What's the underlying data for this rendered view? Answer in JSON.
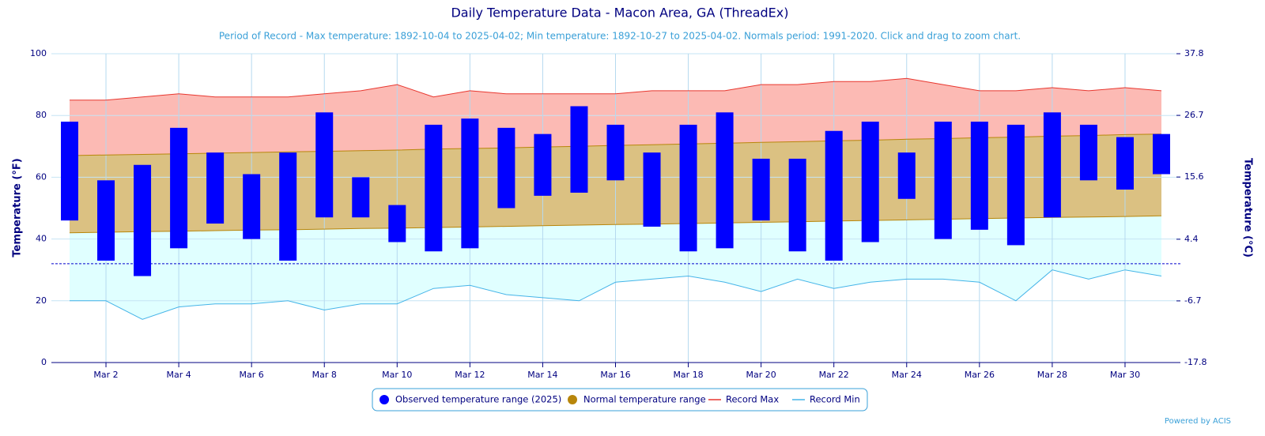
{
  "chart_data": {
    "type": "range",
    "title": "Daily Temperature Data - Macon Area, GA (ThreadEx)",
    "subtitle": "Period of Record - Max temperature: 1892-10-04 to 2025-04-02; Min temperature: 1892-10-27 to 2025-04-02. Normals period: 1991-2020. Click and drag to zoom chart.",
    "y_label": "Temperature (°F)",
    "y2_label": "Temperature (°C)",
    "credit": "Powered by ACIS",
    "categories": [
      null,
      "Mar 2",
      null,
      "Mar 4",
      null,
      "Mar 6",
      null,
      "Mar 8",
      null,
      "Mar 10",
      null,
      "Mar 12",
      null,
      "Mar 14",
      null,
      "Mar 16",
      null,
      "Mar 18",
      null,
      "Mar 20",
      null,
      "Mar 22",
      null,
      "Mar 24",
      null,
      "Mar 26",
      null,
      "Mar 28",
      null,
      "Mar 30",
      null
    ],
    "series": [
      {
        "name": "Observed temperature range (2025)",
        "color": "#0000ff",
        "high": [
          78,
          59,
          64,
          76,
          68,
          61,
          68,
          81,
          60,
          51,
          77,
          79,
          76,
          74,
          83,
          77,
          68,
          77,
          81,
          66,
          66,
          75,
          78,
          68,
          78,
          78,
          77,
          81,
          77,
          73,
          74
        ],
        "low": [
          46,
          33,
          28,
          37,
          45,
          40,
          33,
          47,
          47,
          39,
          36,
          37,
          50,
          54,
          55,
          59,
          44,
          36,
          37,
          46,
          36,
          33,
          39,
          53,
          40,
          43,
          38,
          47,
          59,
          56,
          61
        ]
      },
      {
        "name": "Normal temperature range",
        "color": "#b8860b",
        "fill": "#dbc182",
        "high": [
          67.0,
          67.2,
          67.4,
          67.6,
          67.8,
          68.0,
          68.2,
          68.4,
          68.6,
          68.8,
          69.1,
          69.3,
          69.5,
          69.8,
          70.0,
          70.3,
          70.5,
          70.8,
          71.0,
          71.3,
          71.5,
          71.8,
          72.0,
          72.3,
          72.5,
          72.8,
          73.0,
          73.3,
          73.5,
          73.8,
          74.0
        ],
        "low": [
          42.0,
          42.2,
          42.4,
          42.5,
          42.7,
          42.9,
          43.0,
          43.2,
          43.4,
          43.5,
          43.7,
          43.9,
          44.1,
          44.3,
          44.5,
          44.7,
          44.8,
          45.0,
          45.2,
          45.4,
          45.6,
          45.8,
          46.0,
          46.2,
          46.4,
          46.6,
          46.8,
          47.0,
          47.1,
          47.3,
          47.5
        ]
      },
      {
        "name": "Record Max",
        "color": "#e8372f",
        "fill": "#fcbab4",
        "values": [
          85,
          85,
          86,
          87,
          86,
          86,
          86,
          87,
          88,
          90,
          86,
          88,
          87,
          87,
          87,
          87,
          88,
          88,
          88,
          90,
          90,
          91,
          91,
          92,
          90,
          88,
          88,
          89,
          88,
          89,
          88
        ]
      },
      {
        "name": "Record Min",
        "color": "#45b4e8",
        "fill": "#e0ffff",
        "values": [
          20,
          20,
          14,
          18,
          19,
          19,
          20,
          17,
          19,
          19,
          24,
          25,
          22,
          21,
          20,
          26,
          27,
          28,
          26,
          23,
          27,
          24,
          26,
          27,
          27,
          26,
          20,
          30,
          27,
          30,
          28
        ]
      }
    ],
    "reference_line": 32,
    "ylim": [
      0,
      100
    ],
    "yticks": [
      0,
      20,
      40,
      60,
      80,
      100
    ],
    "y2lim": [
      -17.8,
      37.8
    ],
    "y2ticks": [
      -17.8,
      -6.7,
      4.4,
      15.6,
      26.7,
      37.8
    ],
    "grid": true
  }
}
